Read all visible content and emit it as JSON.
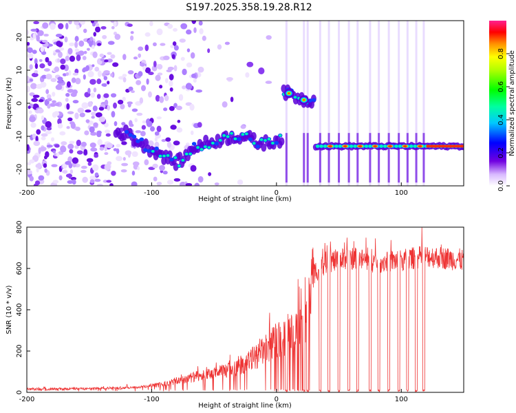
{
  "title": "S197.2025.358.19.28.R12",
  "chart_data": [
    {
      "type": "heatmap",
      "xlabel": "Height of straight line (km)",
      "ylabel": "Frequency (Hz)",
      "xlim": [
        -200,
        150
      ],
      "ylim": [
        -25,
        25
      ],
      "xticks": [
        -200,
        -100,
        0,
        100
      ],
      "yticks": [
        -20,
        -10,
        0,
        10,
        20
      ],
      "colorbar": {
        "label": "Normalized spectral amplitude",
        "range": [
          0,
          1
        ],
        "ticks": [
          0.0,
          0.2,
          0.4,
          0.6,
          0.8
        ]
      },
      "ridge": [
        {
          "x": -130,
          "f": -9
        },
        {
          "x": -120,
          "f": -9
        },
        {
          "x": -110,
          "f": -12
        },
        {
          "x": -100,
          "f": -14
        },
        {
          "x": -90,
          "f": -16
        },
        {
          "x": -80,
          "f": -18
        },
        {
          "x": -72,
          "f": -16
        },
        {
          "x": -65,
          "f": -13
        },
        {
          "x": -55,
          "f": -12
        },
        {
          "x": -45,
          "f": -11
        },
        {
          "x": -35,
          "f": -10
        },
        {
          "x": -25,
          "f": -10
        },
        {
          "x": -15,
          "f": -12
        },
        {
          "x": -5,
          "f": -12
        },
        {
          "x": 0,
          "f": -11
        },
        {
          "x": 10,
          "f": 3
        },
        {
          "x": 22,
          "f": 1
        },
        {
          "x": 40,
          "f": -13
        },
        {
          "x": 60,
          "f": -13
        },
        {
          "x": 80,
          "f": -13
        },
        {
          "x": 100,
          "f": -13
        },
        {
          "x": 120,
          "f": -13
        },
        {
          "x": 150,
          "f": -13
        }
      ]
    },
    {
      "type": "line",
      "xlabel": "Height of straight line (km)",
      "ylabel": "SNR (10 * v/v)",
      "xlim": [
        -200,
        150
      ],
      "ylim": [
        0,
        800
      ],
      "xticks": [
        -200,
        -100,
        0,
        100
      ],
      "yticks": [
        0,
        200,
        400,
        600,
        800
      ],
      "color": "#ee3333",
      "envelope": [
        {
          "x": -200,
          "y": 15
        },
        {
          "x": -150,
          "y": 18
        },
        {
          "x": -110,
          "y": 25
        },
        {
          "x": -90,
          "y": 40
        },
        {
          "x": -70,
          "y": 70
        },
        {
          "x": -50,
          "y": 90
        },
        {
          "x": -30,
          "y": 120
        },
        {
          "x": -20,
          "y": 160
        },
        {
          "x": -10,
          "y": 200
        },
        {
          "x": 0,
          "y": 250
        },
        {
          "x": 10,
          "y": 270
        },
        {
          "x": 20,
          "y": 320
        },
        {
          "x": 25,
          "y": 400
        },
        {
          "x": 30,
          "y": 580
        },
        {
          "x": 40,
          "y": 630
        },
        {
          "x": 60,
          "y": 650
        },
        {
          "x": 80,
          "y": 630
        },
        {
          "x": 100,
          "y": 640
        },
        {
          "x": 120,
          "y": 660
        },
        {
          "x": 150,
          "y": 640
        }
      ],
      "dropouts_km": [
        8,
        22,
        25,
        35,
        42,
        50,
        58,
        65,
        75,
        82,
        90,
        98,
        105,
        112,
        118
      ]
    }
  ]
}
